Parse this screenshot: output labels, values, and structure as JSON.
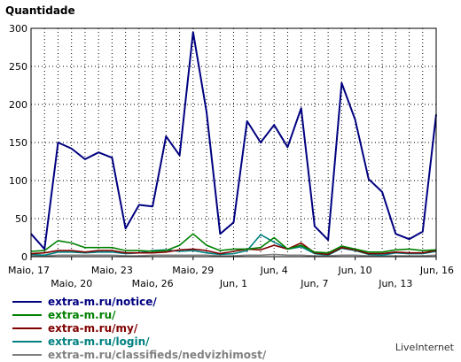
{
  "chart_data": {
    "type": "line",
    "title": "Quantidade",
    "xlabel": "",
    "ylabel": "",
    "ylim": [
      0,
      300
    ],
    "yticks": [
      0,
      50,
      100,
      150,
      200,
      250,
      300
    ],
    "grid": true,
    "legend_position": "bottom-left",
    "x_tick_labels": [
      {
        "label": "Maio, 17",
        "index": 0,
        "row": 0
      },
      {
        "label": "Maio, 20",
        "index": 3,
        "row": 1
      },
      {
        "label": "Maio, 23",
        "index": 6,
        "row": 0
      },
      {
        "label": "Maio, 26",
        "index": 9,
        "row": 1
      },
      {
        "label": "Maio, 29",
        "index": 12,
        "row": 0
      },
      {
        "label": "Jun, 1",
        "index": 15,
        "row": 1
      },
      {
        "label": "Jun, 4",
        "index": 18,
        "row": 0
      },
      {
        "label": "Jun, 7",
        "index": 21,
        "row": 1
      },
      {
        "label": "Jun, 10",
        "index": 24,
        "row": 0
      },
      {
        "label": "Jun, 13",
        "index": 27,
        "row": 1
      },
      {
        "label": "Jun, 16",
        "index": 30,
        "row": 0
      }
    ],
    "series": [
      {
        "name": "extra-m.ru/notice/",
        "color": "#000080",
        "values": [
          30,
          10,
          150,
          142,
          128,
          137,
          130,
          37,
          68,
          66,
          158,
          133,
          295,
          190,
          30,
          45,
          178,
          150,
          173,
          144,
          195,
          40,
          22,
          228,
          180,
          102,
          85,
          30,
          23,
          33,
          187
        ]
      },
      {
        "name": "extra-m.ru/",
        "color": "#008000",
        "values": [
          7,
          8,
          21,
          18,
          12,
          12,
          12,
          8,
          8,
          7,
          8,
          15,
          30,
          15,
          8,
          10,
          10,
          12,
          25,
          10,
          15,
          6,
          5,
          14,
          10,
          6,
          6,
          9,
          10,
          8,
          9
        ]
      },
      {
        "name": "extra-m.ru/my/",
        "color": "#800000",
        "values": [
          4,
          5,
          8,
          8,
          6,
          8,
          8,
          5,
          5,
          5,
          6,
          9,
          10,
          8,
          4,
          7,
          10,
          9,
          15,
          10,
          18,
          5,
          3,
          12,
          9,
          4,
          4,
          6,
          5,
          5,
          8
        ]
      },
      {
        "name": "extra-m.ru/login/",
        "color": "#008080",
        "values": [
          3,
          2,
          6,
          6,
          5,
          6,
          6,
          4,
          5,
          8,
          9,
          7,
          8,
          5,
          3,
          4,
          8,
          29,
          19,
          10,
          13,
          4,
          2,
          11,
          8,
          3,
          2,
          5,
          4,
          4,
          7
        ]
      },
      {
        "name": "extra-m.ru/classifieds/nedvizhimost/",
        "color": "#808080",
        "values": [
          1,
          1,
          2,
          2,
          2,
          2,
          2,
          1,
          1,
          2,
          2,
          2,
          2,
          2,
          1,
          1,
          2,
          2,
          3,
          2,
          2,
          1,
          1,
          2,
          2,
          1,
          1,
          1,
          1,
          1,
          2
        ]
      }
    ]
  },
  "brand": "LiveInternet"
}
